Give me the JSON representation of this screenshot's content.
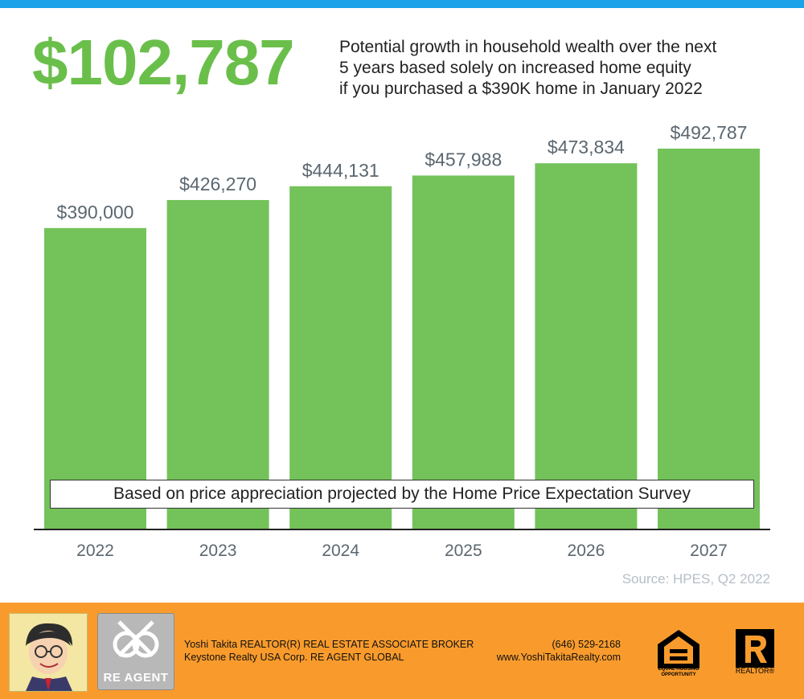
{
  "header": {
    "headline": "$102,787",
    "subtitle_lines": [
      "Potential growth in household wealth over the next",
      "5 years based solely on increased home equity",
      "if you purchased a $390K home in January 2022"
    ]
  },
  "chart_data": {
    "type": "bar",
    "categories": [
      "2022",
      "2023",
      "2024",
      "2025",
      "2026",
      "2027"
    ],
    "values": [
      390000,
      426270,
      444131,
      457988,
      473834,
      492787
    ],
    "data_labels": [
      "$390,000",
      "$426,270",
      "$444,131",
      "$457,988",
      "$473,834",
      "$492,787"
    ],
    "title": "",
    "xlabel": "",
    "ylabel": "",
    "ylim": [
      0,
      525000
    ],
    "grid": false,
    "legend": "none",
    "bar_color": "#74c25a"
  },
  "note": "Based on price appreciation projected by the Home Price Expectation Survey",
  "source": "Source: HPES, Q2 2022",
  "footer": {
    "logo_text": "RE AGENT",
    "name_line": "Yoshi Takita REALTOR(R) REAL ESTATE ASSOCIATE BROKER",
    "company_line": "Keystone Realty USA Corp.  RE AGENT GLOBAL",
    "phone": "(646) 529-2168",
    "website": "www.YoshiTakitaRealty.com",
    "eho_text_1": "EQUAL HOUSING",
    "eho_text_2": "OPPORTUNITY",
    "realtor_text": "REALTOR®",
    "background_color": "#f99b2c"
  }
}
